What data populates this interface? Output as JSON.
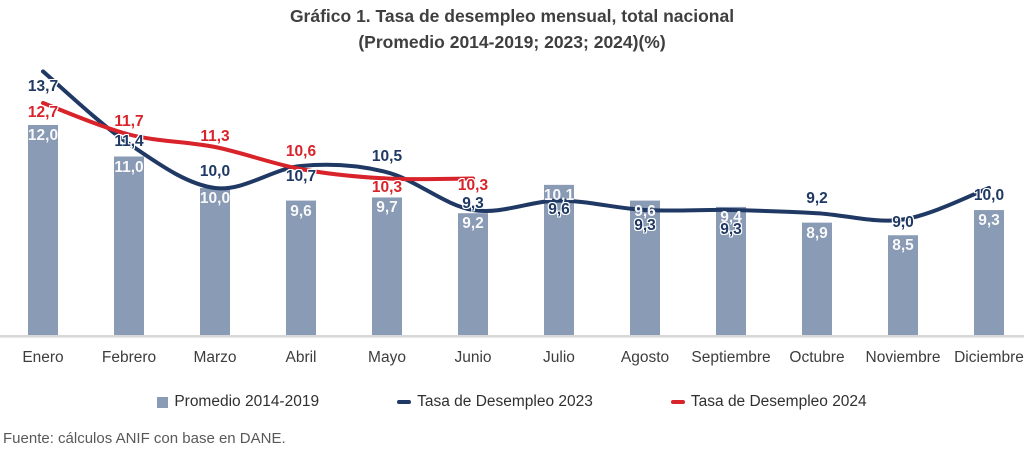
{
  "title": {
    "line1": "Gráfico 1. Tasa de desempleo mensual, total nacional",
    "line2": "(Promedio 2014-2019; 2023; 2024)(%)"
  },
  "footer": {
    "source": "Fuente: cálculos ANIF con base en DANE."
  },
  "colors": {
    "bar": "#8a9bb5",
    "line_2023": "#1f3864",
    "line_2024": "#d8232a",
    "axis": "#d8d8d8",
    "title_text": "#3f3f3f",
    "footer_text": "#595959"
  },
  "chart_data": {
    "type": "bar+line combo",
    "title": "Gráfico 1. Tasa de desempleo mensual, total nacional (Promedio 2014-2019; 2023; 2024)(%)",
    "categories": [
      "Enero",
      "Febrero",
      "Marzo",
      "Abril",
      "Mayo",
      "Junio",
      "Julio",
      "Agosto",
      "Septiembre",
      "Octubre",
      "Noviembre",
      "Diciembre"
    ],
    "value_format": "one decimal, comma separator, e.g. 12,0",
    "y_axis_visible": false,
    "grid": false,
    "y_baseline_value": 5.3,
    "ylim": [
      5.3,
      14.3
    ],
    "legend_position": "bottom",
    "series": [
      {
        "name": "Promedio 2014-2019",
        "type": "bar",
        "color": "#8a9bb5",
        "values": [
          12.0,
          11.0,
          10.0,
          9.6,
          9.7,
          9.2,
          10.1,
          9.6,
          9.4,
          8.9,
          8.5,
          9.3
        ]
      },
      {
        "name": "Tasa de Desempleo 2023",
        "type": "line",
        "smooth": true,
        "color": "#1f3864",
        "values": [
          13.7,
          11.4,
          10.0,
          10.7,
          10.5,
          9.3,
          9.6,
          9.3,
          9.3,
          9.2,
          9.0,
          10.0
        ],
        "label_dy": [
          16,
          -2,
          -16,
          11,
          -15,
          -6,
          9,
          16,
          20,
          -14,
          3,
          8
        ]
      },
      {
        "name": "Tasa de Desempleo 2024",
        "type": "line",
        "smooth": true,
        "color": "#d8232a",
        "values": [
          12.7,
          11.7,
          11.3,
          10.6,
          10.3,
          10.3
        ],
        "label_dy": [
          10,
          -12,
          -10,
          -17,
          9,
          7
        ]
      }
    ]
  }
}
